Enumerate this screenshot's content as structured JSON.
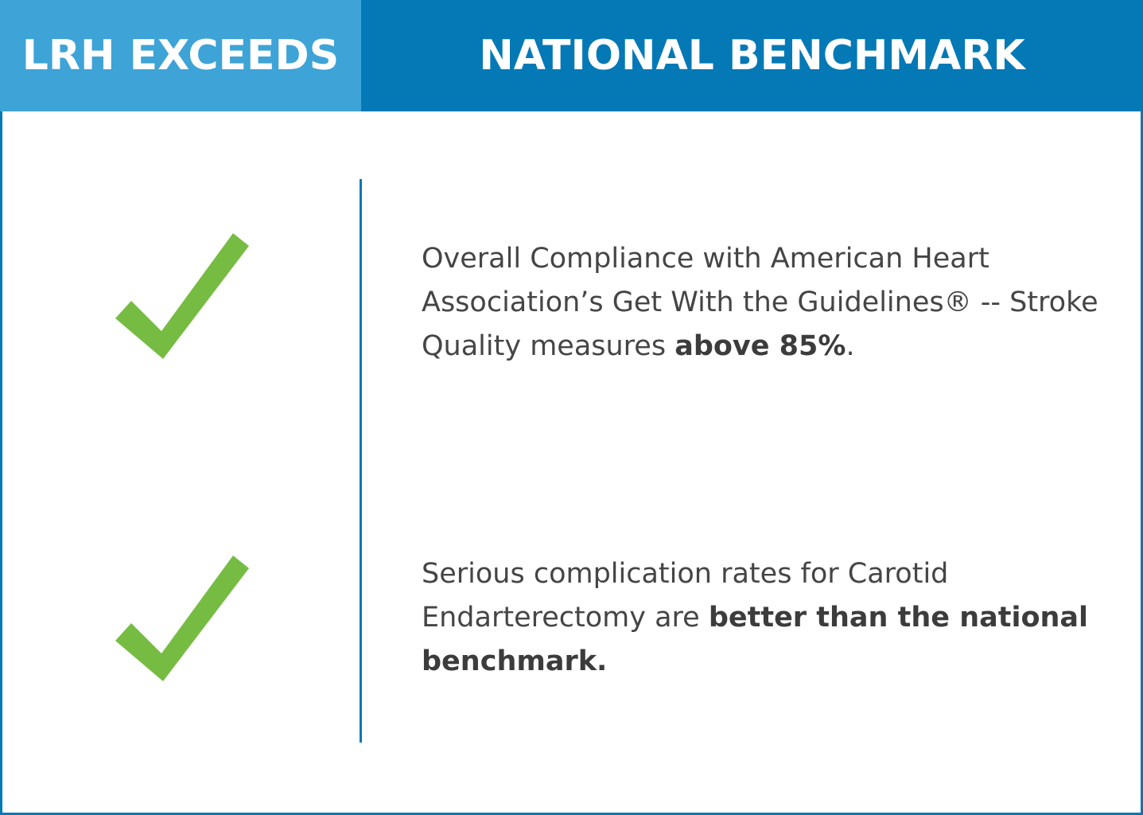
{
  "header": {
    "left_title": "LRH EXCEEDS",
    "right_title": "NATIONAL BENCHMARK"
  },
  "items": [
    {
      "icon": "checkmark-icon",
      "text_regular": "Overall Compliance with American Heart Association’s Get With the Guidelines® -- Stroke Quality measures ",
      "text_bold": "above 85%",
      "text_tail": "."
    },
    {
      "icon": "checkmark-icon",
      "text_regular": "Serious complication rates for Carotid Endarterectomy are ",
      "text_bold": "better than the national benchmark.",
      "text_tail": ""
    }
  ],
  "colors": {
    "header_left_bg": "#3ea3d6",
    "header_right_bg": "#0479b6",
    "check_green": "#76bc43",
    "text": "#454545"
  }
}
